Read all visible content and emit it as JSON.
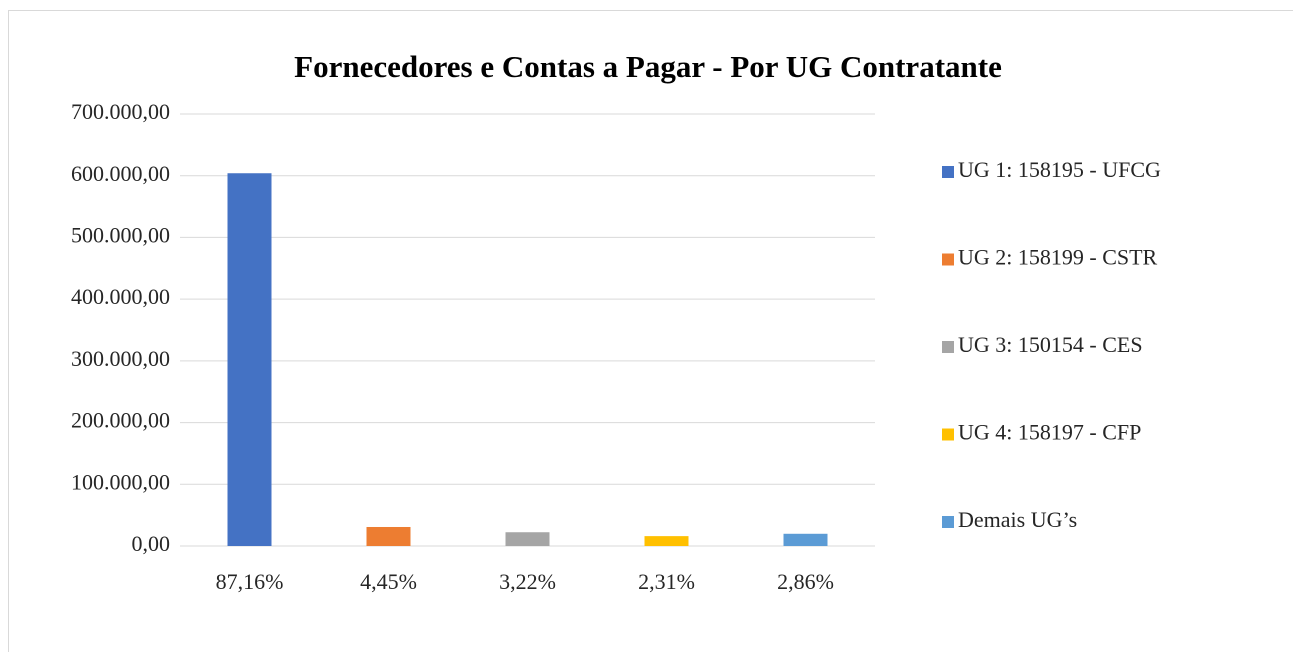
{
  "chart_data": {
    "type": "bar",
    "title": "Fornecedores e Contas a Pagar - Por UG Contratante",
    "categories": [
      "87,16%",
      "4,45%",
      "3,22%",
      "2,31%",
      "2,86%"
    ],
    "values": [
      604000,
      30800,
      22300,
      16000,
      19800
    ],
    "colors": [
      "#4472c4",
      "#ed7d31",
      "#a5a5a5",
      "#ffc000",
      "#5b9bd5"
    ],
    "legend": [
      "UG 1: 158195 - UFCG",
      "UG 2: 158199 - CSTR",
      "UG 3: 150154 - CES",
      "UG 4: 158197 - CFP",
      "Demais UG’s"
    ],
    "legend_position": "right",
    "ylim": [
      0,
      700000
    ],
    "yticks": [
      {
        "value": 0,
        "label": "0,00"
      },
      {
        "value": 100000,
        "label": "100.000,00"
      },
      {
        "value": 200000,
        "label": "200.000,00"
      },
      {
        "value": 300000,
        "label": "300.000,00"
      },
      {
        "value": 400000,
        "label": "400.000,00"
      },
      {
        "value": 500000,
        "label": "500.000,00"
      },
      {
        "value": 600000,
        "label": "600.000,00"
      },
      {
        "value": 700000,
        "label": "700.000,00"
      }
    ],
    "grid": true
  }
}
